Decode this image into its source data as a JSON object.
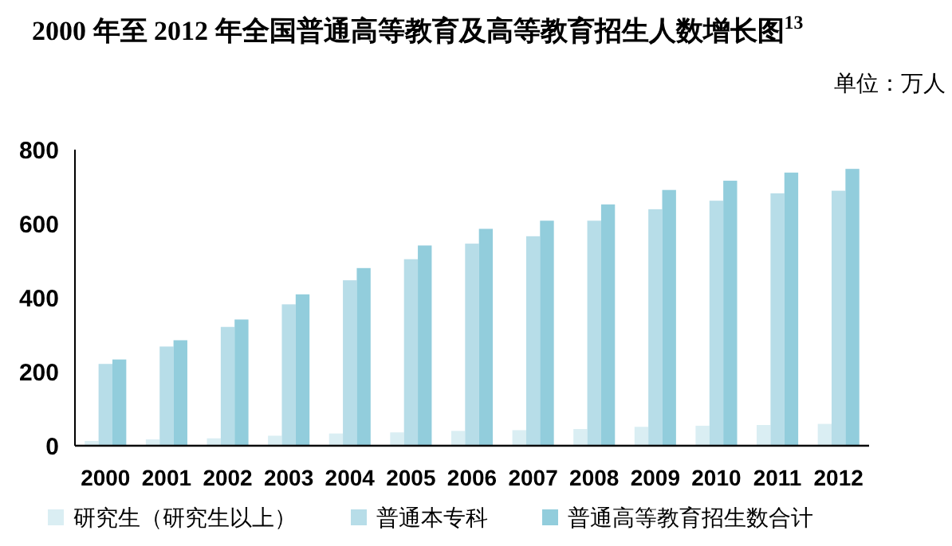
{
  "chart_data": {
    "type": "bar",
    "title": "2000 年至 2012 年全国普通高等教育及高等教育招生人数增长图$^{13}$",
    "annotations": [
      "单位：万人"
    ],
    "categories": [
      "2000",
      "2001",
      "2002",
      "2003",
      "2004",
      "2005",
      "2006",
      "2007",
      "2008",
      "2009",
      "2010",
      "2011",
      "2012"
    ],
    "series": [
      {
        "name": "研究生（研究生以上）",
        "color": "#daeef3",
        "values": [
          13,
          17,
          20,
          27,
          33,
          36,
          40,
          42,
          45,
          51,
          54,
          56,
          59
        ]
      },
      {
        "name": "普通本专科",
        "color": "#b7dde8",
        "values": [
          221,
          268,
          321,
          382,
          447,
          504,
          546,
          566,
          608,
          639,
          662,
          682,
          689
        ]
      },
      {
        "name": "普通高等教育招生数合计",
        "color": "#92cddc",
        "values": [
          233,
          285,
          341,
          409,
          480,
          541,
          586,
          608,
          652,
          691,
          716,
          738,
          748
        ]
      }
    ],
    "ylim": [
      0,
      800
    ],
    "yticks": [
      0,
      200,
      400,
      600,
      800
    ],
    "grid": false,
    "legend": "bottom"
  }
}
